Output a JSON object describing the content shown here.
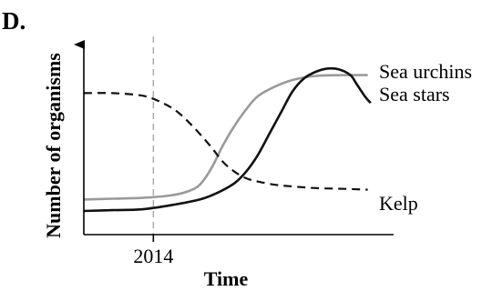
{
  "panel_label": "D.",
  "chart_data": {
    "type": "line",
    "xlabel": "Time",
    "ylabel": "Number of organisms",
    "xlim": [
      0,
      100
    ],
    "ylim": [
      0,
      100
    ],
    "x_ticks": [
      {
        "value": 24,
        "label": "2014"
      }
    ],
    "marker_line": {
      "x": 24,
      "style": "dashed",
      "color": "#9a9a9a"
    },
    "grid": false,
    "legend": "inline labels at right end of lines",
    "series": [
      {
        "name": "Sea urchins",
        "color": "#9a9a9a",
        "dash": "solid",
        "x": [
          0,
          10,
          20,
          30,
          36,
          40,
          44,
          48,
          52,
          56,
          60,
          66,
          72,
          80,
          90,
          98
        ],
        "y": [
          17,
          17.5,
          18,
          19.5,
          22,
          26,
          36,
          50,
          62,
          72,
          80,
          86,
          90,
          92.5,
          93,
          93
        ]
      },
      {
        "name": "Sea stars",
        "color": "#111111",
        "dash": "solid",
        "x": [
          0,
          10,
          20,
          30,
          40,
          46,
          52,
          56,
          60,
          64,
          68,
          72,
          76,
          80,
          84,
          88,
          92,
          94,
          97,
          99
        ],
        "y": [
          10,
          10.5,
          11,
          13.5,
          17,
          21,
          27,
          34,
          44,
          57,
          70,
          83,
          91,
          95,
          97,
          96.5,
          93,
          88,
          80,
          76
        ]
      },
      {
        "name": "Kelp",
        "color": "#111111",
        "dash": "dashed",
        "x": [
          0,
          10,
          20,
          26,
          32,
          38,
          44,
          48,
          52,
          56,
          60,
          66,
          72,
          80,
          90,
          98
        ],
        "y": [
          82,
          82,
          80.5,
          77,
          71,
          61,
          49,
          40,
          34,
          30,
          28,
          26,
          25,
          24,
          23.5,
          23
        ]
      }
    ]
  },
  "colors": {
    "axis": "#000000",
    "marker_line": "#9a9a9a"
  }
}
